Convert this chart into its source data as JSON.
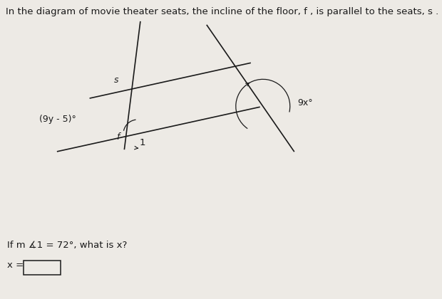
{
  "title": "In the diagram of movie theater seats, the incline of the floor, f , is parallel to the seats, s .",
  "title_fontsize": 9.5,
  "bg_color": "#edeae5",
  "line_color": "#1a1a1a",
  "text_color": "#1a1a1a",
  "label_s": "s",
  "label_f": "f",
  "label_angle1": "1",
  "label_9y": "(9y - 5)°",
  "label_9x": "9x°",
  "question": "If m ∡1 = 72°, what is x?",
  "answer_label": "x =",
  "figsize": [
    6.2,
    4.2
  ],
  "dpi": 100,
  "par_slope": -0.22,
  "t1_slope": -8.0,
  "t2_slope": 1.45
}
